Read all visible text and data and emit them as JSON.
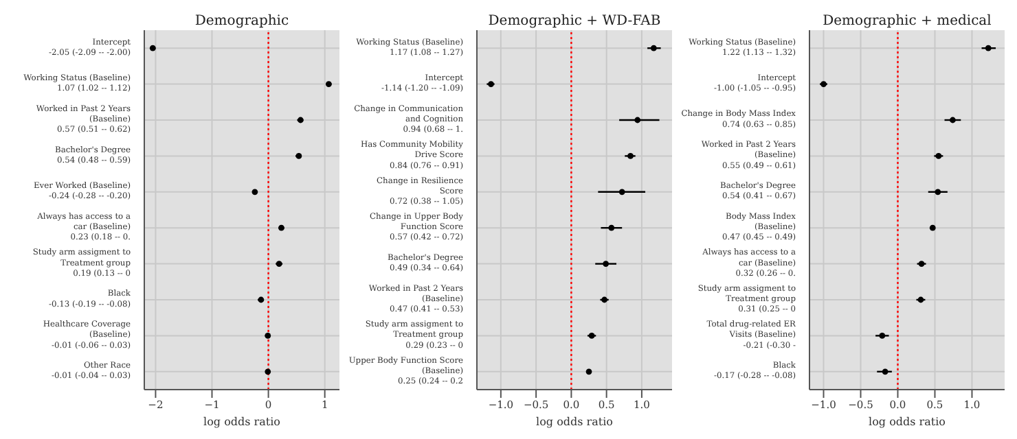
{
  "chart_data": [
    {
      "type": "scatter",
      "title": "Demographic",
      "xlabel": "log odds ratio",
      "orientation": "horizontal",
      "marker": "circle",
      "grid": true,
      "legend": false,
      "categories": [
        "Intercept\n-2.05 (-2.09 -- -2.00)",
        "Working Status (Baseline)\n1.07 (1.02 -- 1.12)",
        "Worked in Past 2 Years\n(Baseline)\n0.57 (0.51 -- 0.62)",
        "Bachelor's Degree\n0.54 (0.48 -- 0.59)",
        "Ever Worked (Baseline)\n-0.24 (-0.28 -- -0.20)",
        "Always has access to a\ncar (Baseline)\n0.23 (0.18 -- 0.",
        "Study arm assigment to\nTreatment group\n0.19 (0.13 -- 0",
        "Black\n-0.13 (-0.19 -- -0.08)",
        "Healthcare Coverage\n(Baseline)\n-0.01 (-0.06 -- 0.03)",
        "Other Race\n-0.01 (-0.04 -- 0.03)"
      ],
      "color": "#000000",
      "values": [
        -2.05,
        1.07,
        0.57,
        0.54,
        -0.24,
        0.23,
        0.19,
        -0.13,
        -0.01,
        -0.01
      ],
      "errors": [
        [
          -2.09,
          -2.0
        ],
        [
          1.02,
          1.12
        ],
        [
          0.51,
          0.62
        ],
        [
          0.48,
          0.59
        ],
        [
          -0.28,
          -0.2
        ],
        [
          0.18,
          0.28
        ],
        [
          0.13,
          0.25
        ],
        [
          -0.19,
          -0.08
        ],
        [
          -0.06,
          0.03
        ],
        [
          -0.04,
          0.03
        ]
      ],
      "xlim": [
        -2.2,
        1.26
      ],
      "xticks": [
        {
          "value": -2,
          "label": "−2"
        },
        {
          "value": -1,
          "label": "−1"
        },
        0,
        1
      ],
      "ref_lines": [
        {
          "axis": "x",
          "value": 0,
          "color": "#ff0000",
          "line_style": "dotted"
        }
      ]
    },
    {
      "type": "scatter",
      "title": "Demographic + WD-FAB",
      "xlabel": "log odds ratio",
      "orientation": "horizontal",
      "marker": "circle",
      "grid": true,
      "legend": false,
      "categories": [
        "Working Status (Baseline)\n1.17 (1.08 -- 1.27)",
        "Intercept\n-1.14 (-1.20 -- -1.09)",
        "Change in Communication\nand Cognition\n0.94 (0.68 -- 1.",
        "Has Community Mobility\nDrive Score\n0.84 (0.76 -- 0.91)",
        "Change in Resilience\nScore\n0.72 (0.38 -- 1.05)",
        "Change in Upper Body\nFunction Score\n0.57 (0.42 -- 0.72)",
        "Bachelor's Degree\n0.49 (0.34 -- 0.64)",
        "Worked in Past 2 Years\n(Baseline)\n0.47 (0.41 -- 0.53)",
        "Study arm assigment to\nTreatment group\n0.29 (0.23 -- 0",
        "Upper Body Function Score\n(Baseline)\n0.25 (0.24 -- 0.2"
      ],
      "color": "#000000",
      "values": [
        1.17,
        -1.14,
        0.94,
        0.84,
        0.72,
        0.57,
        0.49,
        0.47,
        0.29,
        0.25
      ],
      "errors": [
        [
          1.08,
          1.27
        ],
        [
          -1.2,
          -1.09
        ],
        [
          0.68,
          1.25
        ],
        [
          0.76,
          0.91
        ],
        [
          0.38,
          1.05
        ],
        [
          0.42,
          0.72
        ],
        [
          0.34,
          0.64
        ],
        [
          0.41,
          0.53
        ],
        [
          0.23,
          0.35
        ],
        [
          0.24,
          0.26
        ]
      ],
      "xlim": [
        -1.34,
        1.43
      ],
      "xticks": [
        {
          "value": -1,
          "label": "−1.0"
        },
        {
          "value": -0.5,
          "label": "−0.5"
        },
        {
          "value": 0,
          "label": "0.0"
        },
        {
          "value": 0.5,
          "label": "0.5"
        },
        {
          "value": 1,
          "label": "1.0"
        }
      ],
      "ref_lines": [
        {
          "axis": "x",
          "value": 0,
          "color": "#ff0000",
          "line_style": "dotted"
        }
      ]
    },
    {
      "type": "scatter",
      "title": "Demographic + medical",
      "xlabel": "log odds ratio",
      "orientation": "horizontal",
      "marker": "circle",
      "grid": true,
      "legend": false,
      "categories": [
        "Working Status (Baseline)\n1.22 (1.13 -- 1.32)",
        "Intercept\n-1.00 (-1.05 -- -0.95)",
        "Change in Body Mass Index\n0.74 (0.63 -- 0.85)",
        "Worked in Past 2 Years\n(Baseline)\n0.55 (0.49 -- 0.61)",
        "Bachelor's Degree\n0.54 (0.41 -- 0.67)",
        "Body Mass Index\n(Baseline)\n0.47 (0.45 -- 0.49)",
        "Always has access to a\ncar (Baseline)\n0.32 (0.26 -- 0.",
        "Study arm assigment to\nTreatment group\n0.31 (0.25 -- 0",
        "Total drug-related ER\nVisits (Baseline)\n-0.21 (-0.30 -",
        "Black\n-0.17 (-0.28 -- -0.08)"
      ],
      "color": "#000000",
      "values": [
        1.22,
        -1.0,
        0.74,
        0.55,
        0.54,
        0.47,
        0.32,
        0.31,
        -0.21,
        -0.17
      ],
      "errors": [
        [
          1.13,
          1.32
        ],
        [
          -1.05,
          -0.95
        ],
        [
          0.63,
          0.85
        ],
        [
          0.49,
          0.61
        ],
        [
          0.41,
          0.67
        ],
        [
          0.45,
          0.49
        ],
        [
          0.26,
          0.38
        ],
        [
          0.25,
          0.37
        ],
        [
          -0.3,
          -0.12
        ],
        [
          -0.28,
          -0.08
        ]
      ],
      "xlim": [
        -1.19,
        1.44
      ],
      "xticks": [
        {
          "value": -1,
          "label": "−1.0"
        },
        {
          "value": -0.5,
          "label": "−0.5"
        },
        {
          "value": 0,
          "label": "0.0"
        },
        {
          "value": 0.5,
          "label": "0.5"
        },
        {
          "value": 1,
          "label": "1.0"
        }
      ],
      "ref_lines": [
        {
          "axis": "x",
          "value": 0,
          "color": "#ff0000",
          "line_style": "dotted"
        }
      ]
    }
  ]
}
